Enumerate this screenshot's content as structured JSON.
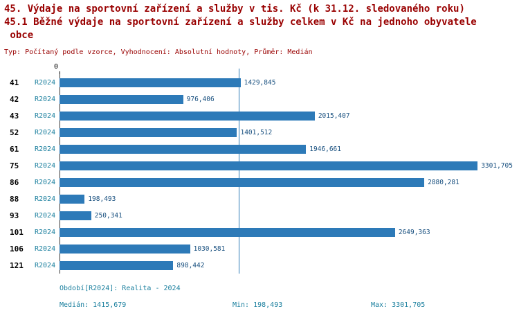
{
  "title": {
    "line1": "45. Výdaje na sportovní zařízení a služby v tis. Kč (k 31.12. sledovaného roku)",
    "line2": "45.1 Běžné výdaje na sportovní zařízení a služby celkem v Kč na jednoho obyvatele",
    "line3": " obce",
    "meta": "Typ: Počítaný podle vzorce, Vyhodnocení: Absolutní hodnoty, Průměr: Medián"
  },
  "chart_data": {
    "type": "bar",
    "orientation": "horizontal",
    "title": "45.1 Běžné výdaje na sportovní zařízení a služby celkem v Kč na jednoho obyvatele obce",
    "categories": [
      "41",
      "42",
      "43",
      "52",
      "61",
      "75",
      "86",
      "88",
      "93",
      "101",
      "106",
      "121"
    ],
    "series_label": "R2024",
    "values": [
      1429.845,
      976.406,
      2015.407,
      1401.512,
      1946.661,
      3301.705,
      2880.281,
      198.493,
      250.341,
      2649.363,
      1030.581,
      898.442
    ],
    "value_labels": [
      "1429,845",
      "976,406",
      "2015,407",
      "1401,512",
      "1946,661",
      "3301,705",
      "2880,281",
      "198,493",
      "250,341",
      "2649,363",
      "1030,581",
      "898,442"
    ],
    "axis_zero_label": "0",
    "xlim": [
      0,
      3400
    ],
    "median": 1415.679,
    "min": 198.493,
    "max": 3301.705,
    "grid": false,
    "legend_position": "none"
  },
  "footer": {
    "period": "Období[R2024]: Realita - 2024",
    "median": "Medián: 1415,679",
    "min": "Min: 198,493",
    "max": "Max: 3301,705"
  },
  "colors": {
    "title_text": "#990000",
    "bar_fill": "#2d7ab8",
    "category_text": "#000000",
    "series_text": "#1a7f9e",
    "value_text": "#164e7e",
    "median_line": "#2878b4",
    "footer_text": "#1a7f9e"
  }
}
